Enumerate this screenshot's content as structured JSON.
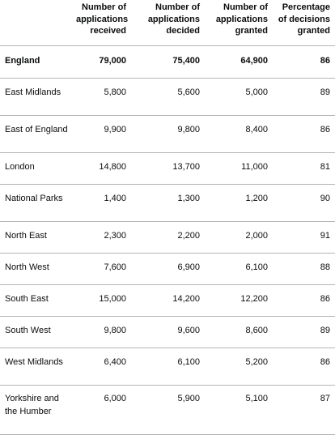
{
  "table": {
    "headers": [
      "",
      "Number of applications received",
      "Number of applications decided",
      "Number of applications granted",
      "Percentage of decisions granted"
    ],
    "rows": [
      {
        "region": "England",
        "received": "79,000",
        "decided": "75,400",
        "granted": "64,900",
        "percent": "86"
      },
      {
        "region": "East Midlands",
        "received": "5,800",
        "decided": "5,600",
        "granted": "5,000",
        "percent": "89"
      },
      {
        "region": "East of England",
        "received": "9,900",
        "decided": "9,800",
        "granted": "8,400",
        "percent": "86"
      },
      {
        "region": "London",
        "received": "14,800",
        "decided": "13,700",
        "granted": "11,000",
        "percent": "81"
      },
      {
        "region": "National Parks",
        "received": "1,400",
        "decided": "1,300",
        "granted": "1,200",
        "percent": "90"
      },
      {
        "region": "North East",
        "received": "2,300",
        "decided": "2,200",
        "granted": "2,000",
        "percent": "91"
      },
      {
        "region": "North West",
        "received": "7,600",
        "decided": "6,900",
        "granted": "6,100",
        "percent": "88"
      },
      {
        "region": "South East",
        "received": "15,000",
        "decided": "14,200",
        "granted": "12,200",
        "percent": "86"
      },
      {
        "region": "South West",
        "received": "9,800",
        "decided": "9,600",
        "granted": "8,600",
        "percent": "89"
      },
      {
        "region": "West Midlands",
        "received": "6,400",
        "decided": "6,100",
        "granted": "5,200",
        "percent": "86"
      },
      {
        "region": "Yorkshire and the Humber",
        "received": "6,000",
        "decided": "5,900",
        "granted": "5,100",
        "percent": "87"
      }
    ]
  }
}
